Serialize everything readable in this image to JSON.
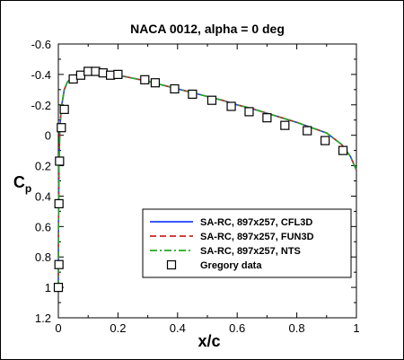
{
  "chart_data": {
    "type": "line",
    "title": "NACA 0012, alpha = 0 deg",
    "xlabel": "x/c",
    "ylabel_main": "C",
    "ylabel_sub": "p",
    "xlim": [
      0,
      1
    ],
    "ylim": [
      1.2,
      -0.6
    ],
    "y_inverted": true,
    "x_ticks": [
      0,
      0.2,
      0.4,
      0.6,
      0.8,
      1
    ],
    "x_tick_labels": [
      "0",
      "0.2",
      "0.4",
      "0.6",
      "0.8",
      "1"
    ],
    "y_ticks": [
      -0.6,
      -0.4,
      -0.2,
      0,
      0.2,
      0.4,
      0.6,
      0.8,
      1,
      1.2
    ],
    "y_tick_labels": [
      "-0.6",
      "-0.4",
      "-0.2",
      "0",
      "0.2",
      "0.4",
      "0.6",
      "0.8",
      "1",
      "1.2"
    ],
    "grid": false,
    "legend_position": "bottom-right",
    "series": [
      {
        "name": "SA-RC, 897x257, CFL3D",
        "color": "#1f3fff",
        "style": "solid",
        "x": [
          0,
          0.0005,
          0.002,
          0.005,
          0.01,
          0.02,
          0.03,
          0.05,
          0.075,
          0.1,
          0.125,
          0.15,
          0.175,
          0.2,
          0.25,
          0.3,
          0.35,
          0.4,
          0.45,
          0.5,
          0.55,
          0.6,
          0.65,
          0.7,
          0.75,
          0.8,
          0.85,
          0.9,
          0.95,
          0.98,
          1.0
        ],
        "y": [
          1.0,
          0.6,
          0.2,
          -0.05,
          -0.18,
          -0.3,
          -0.35,
          -0.39,
          -0.405,
          -0.41,
          -0.41,
          -0.405,
          -0.4,
          -0.395,
          -0.375,
          -0.355,
          -0.33,
          -0.305,
          -0.28,
          -0.255,
          -0.23,
          -0.2,
          -0.175,
          -0.145,
          -0.115,
          -0.085,
          -0.05,
          -0.015,
          0.06,
          0.14,
          0.23
        ]
      },
      {
        "name": "SA-RC, 897x257, FUN3D",
        "color": "#d42020",
        "style": "dashed",
        "x": [
          0,
          0.0005,
          0.002,
          0.005,
          0.01,
          0.02,
          0.03,
          0.05,
          0.075,
          0.1,
          0.125,
          0.15,
          0.175,
          0.2,
          0.25,
          0.3,
          0.35,
          0.4,
          0.45,
          0.5,
          0.55,
          0.6,
          0.65,
          0.7,
          0.75,
          0.8,
          0.85,
          0.9,
          0.95,
          0.98,
          1.0
        ],
        "y": [
          1.0,
          0.6,
          0.2,
          -0.05,
          -0.18,
          -0.3,
          -0.35,
          -0.39,
          -0.405,
          -0.41,
          -0.41,
          -0.405,
          -0.4,
          -0.395,
          -0.375,
          -0.355,
          -0.33,
          -0.305,
          -0.28,
          -0.255,
          -0.23,
          -0.2,
          -0.175,
          -0.145,
          -0.115,
          -0.085,
          -0.05,
          -0.015,
          0.06,
          0.14,
          0.23
        ]
      },
      {
        "name": "SA-RC, 897x257, NTS",
        "color": "#22aa22",
        "style": "dashdot",
        "x": [
          0,
          0.0005,
          0.002,
          0.005,
          0.01,
          0.02,
          0.03,
          0.05,
          0.075,
          0.1,
          0.125,
          0.15,
          0.175,
          0.2,
          0.25,
          0.3,
          0.35,
          0.4,
          0.45,
          0.5,
          0.55,
          0.6,
          0.65,
          0.7,
          0.75,
          0.8,
          0.85,
          0.9,
          0.95,
          0.98,
          1.0
        ],
        "y": [
          1.0,
          0.6,
          0.2,
          -0.05,
          -0.18,
          -0.3,
          -0.35,
          -0.39,
          -0.405,
          -0.41,
          -0.41,
          -0.405,
          -0.4,
          -0.395,
          -0.375,
          -0.355,
          -0.33,
          -0.305,
          -0.28,
          -0.255,
          -0.23,
          -0.2,
          -0.175,
          -0.145,
          -0.115,
          -0.085,
          -0.05,
          -0.015,
          0.06,
          0.14,
          0.23
        ]
      },
      {
        "name": "Gregory data",
        "color": "#000000",
        "style": "marker-square-open",
        "x": [
          0,
          0.002,
          0.002,
          0.004,
          0.01,
          0.02,
          0.05,
          0.075,
          0.1,
          0.125,
          0.15,
          0.175,
          0.2,
          0.29,
          0.325,
          0.39,
          0.45,
          0.515,
          0.58,
          0.64,
          0.7,
          0.76,
          0.835,
          0.895,
          0.955
        ],
        "y": [
          1.0,
          0.85,
          0.45,
          0.17,
          -0.05,
          -0.17,
          -0.37,
          -0.395,
          -0.42,
          -0.42,
          -0.41,
          -0.395,
          -0.4,
          -0.365,
          -0.345,
          -0.305,
          -0.27,
          -0.23,
          -0.19,
          -0.155,
          -0.115,
          -0.065,
          -0.03,
          0.035,
          0.1
        ]
      }
    ]
  }
}
